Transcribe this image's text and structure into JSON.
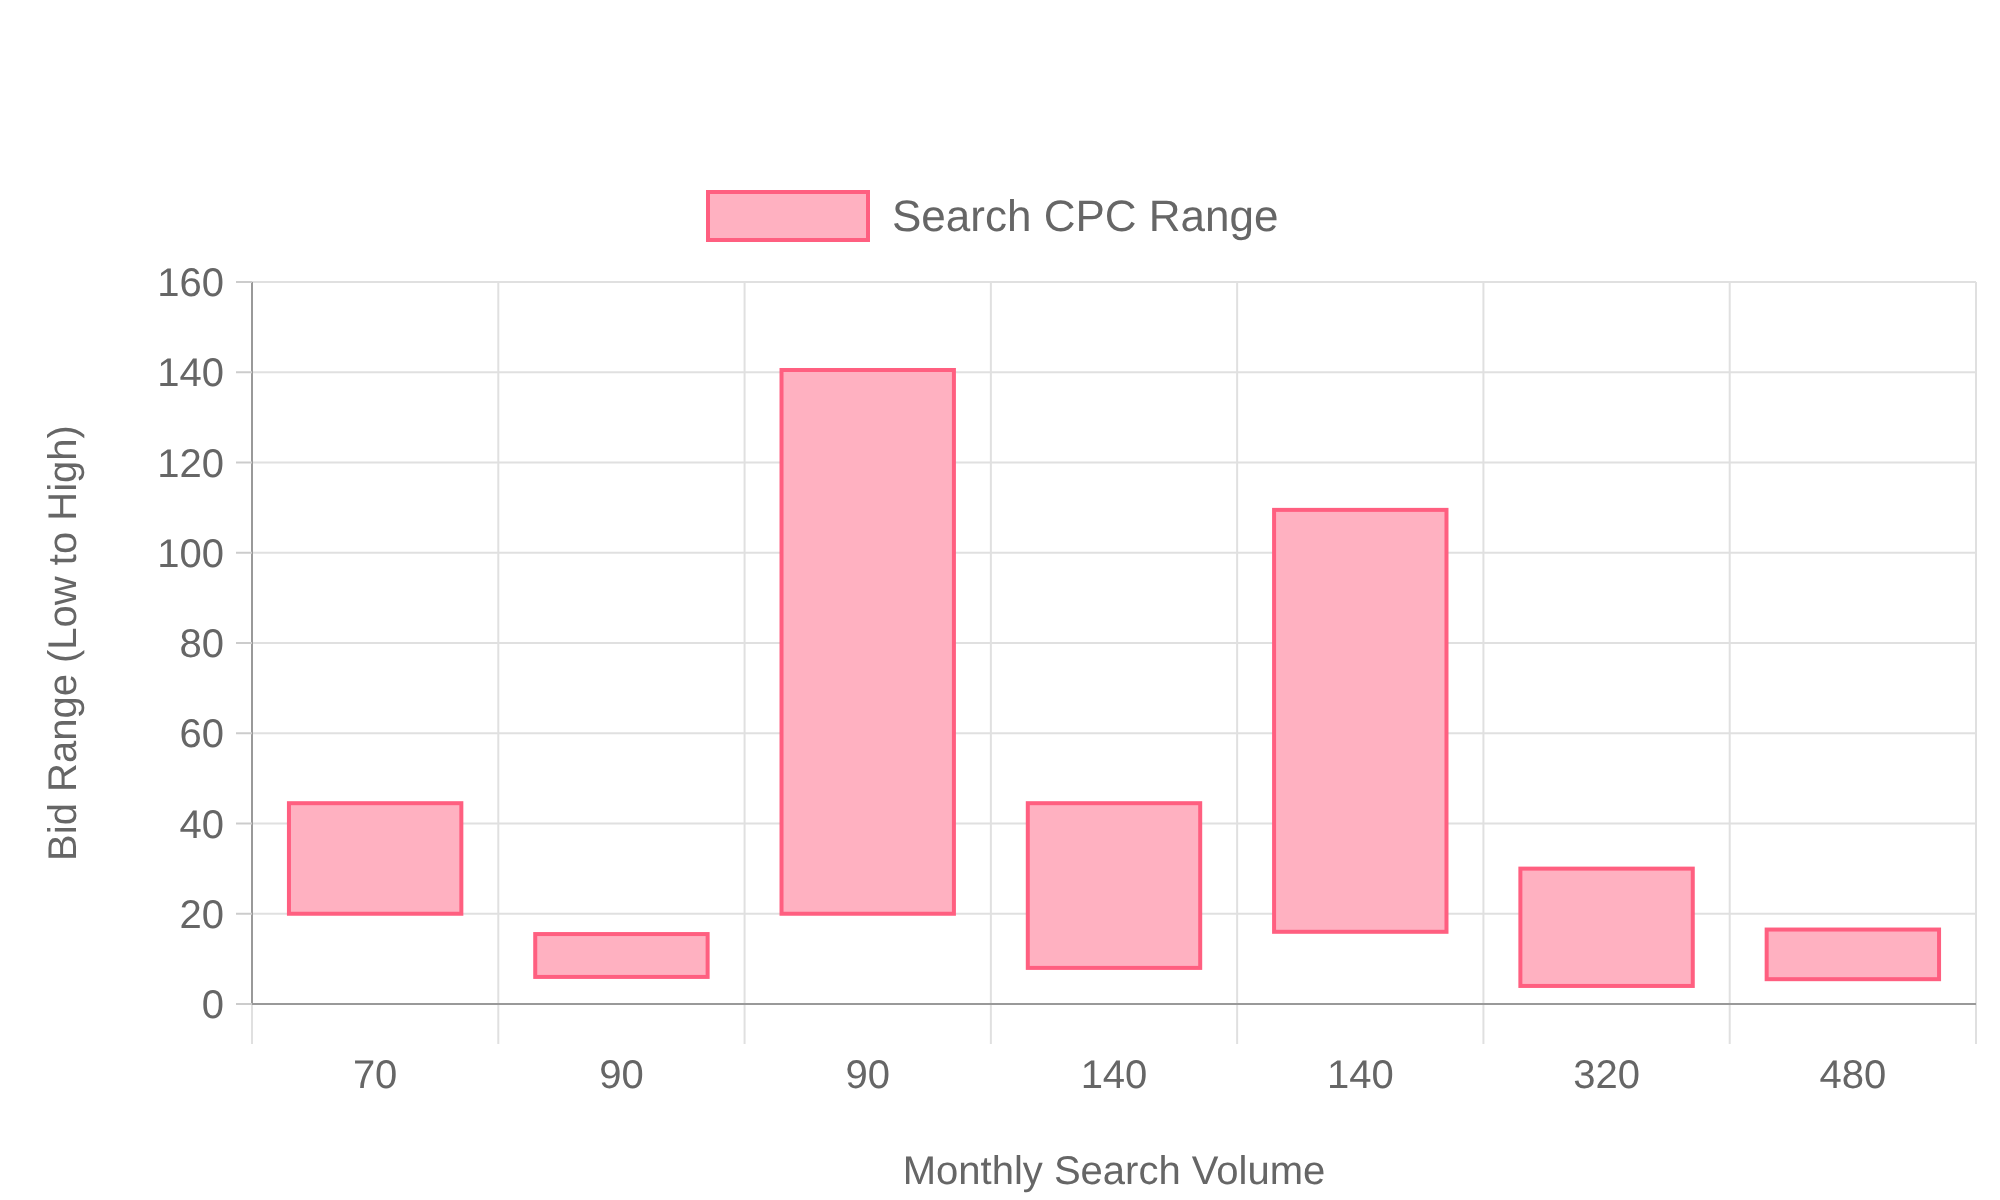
{
  "chart_data": {
    "type": "bar",
    "xlabel": "Monthly Search Volume",
    "ylabel": "Bid Range (Low to High)",
    "categories": [
      "70",
      "90",
      "90",
      "140",
      "140",
      "320",
      "480"
    ],
    "series": [
      {
        "name": "Search CPC Range",
        "color": "#ffb1c1",
        "base": [
          20,
          6,
          20,
          8,
          16,
          4,
          5.5
        ],
        "values": [
          24.5,
          9.5,
          120.5,
          36.5,
          93.5,
          26,
          11
        ]
      }
    ],
    "ylim": [
      0,
      160
    ],
    "yticks": [
      0,
      20,
      40,
      60,
      80,
      100,
      120,
      140,
      160
    ],
    "grid": true,
    "legend": "top"
  }
}
